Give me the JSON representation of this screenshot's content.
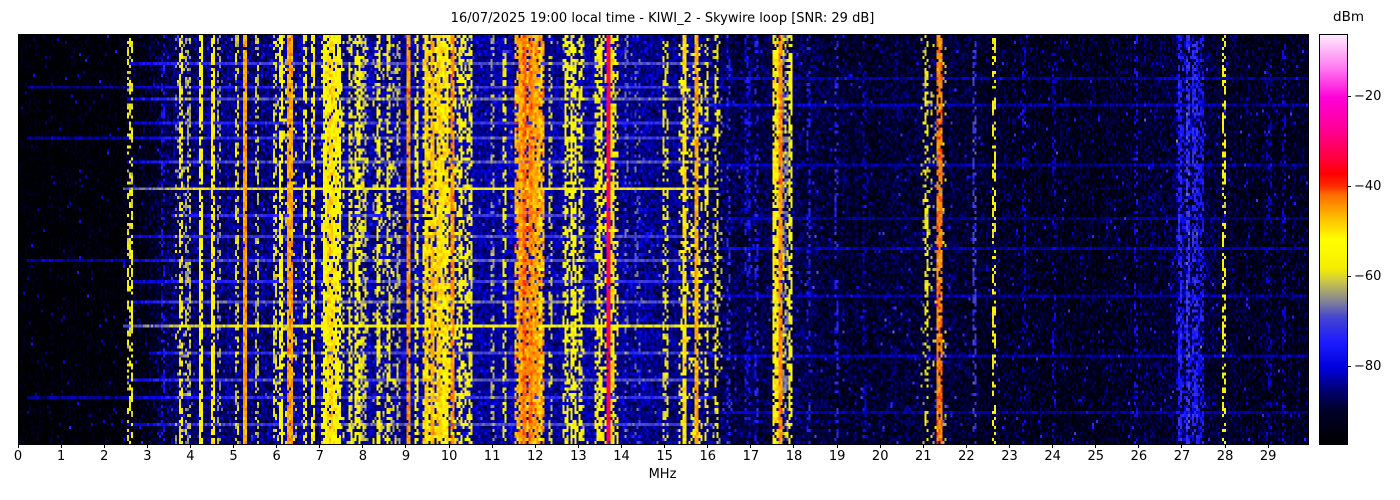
{
  "chart_data": {
    "type": "heatmap",
    "title": "16/07/2025 19:00 local time - KIWI_2 - Skywire loop [SNR: 29 dB]",
    "xlabel": "MHz",
    "colorbar_label": "dBm",
    "x_range": [
      0,
      29.9
    ],
    "x_ticks": [
      0,
      1,
      2,
      3,
      4,
      5,
      6,
      7,
      8,
      9,
      10,
      11,
      12,
      13,
      14,
      15,
      16,
      17,
      18,
      19,
      20,
      21,
      22,
      23,
      24,
      25,
      26,
      27,
      28,
      29
    ],
    "colorbar_ticks": [
      -20,
      -40,
      -60,
      -80
    ],
    "value_range_dbm": [
      -97,
      -6
    ],
    "legend_position": "right-colorbar",
    "grid": false,
    "colormap_stops": [
      [
        0.0,
        "#000000"
      ],
      [
        0.08,
        "#000028"
      ],
      [
        0.13,
        "#000070"
      ],
      [
        0.187,
        "#0000dd"
      ],
      [
        0.25,
        "#1c1cff"
      ],
      [
        0.31,
        "#4646cf"
      ],
      [
        0.355,
        "#8b8b8b"
      ],
      [
        0.4,
        "#cfc944"
      ],
      [
        0.43,
        "#f5ee00"
      ],
      [
        0.5,
        "#ffff00"
      ],
      [
        0.56,
        "#ffb400"
      ],
      [
        0.61,
        "#ff6a00"
      ],
      [
        0.63,
        "#ff2d00"
      ],
      [
        0.66,
        "#ff0000"
      ],
      [
        0.7,
        "#ff0040"
      ],
      [
        0.76,
        "#ff008c"
      ],
      [
        0.846,
        "#ff00d9"
      ],
      [
        0.92,
        "#ff7bf0"
      ],
      [
        1.0,
        "#ffebff"
      ]
    ],
    "noise_floor_dbm": [
      [
        0,
        -96.5
      ],
      [
        2.3,
        -96
      ],
      [
        2.6,
        -94.5
      ],
      [
        3.0,
        -92
      ],
      [
        3.4,
        -89
      ],
      [
        3.7,
        -86
      ],
      [
        4.5,
        -85.5
      ],
      [
        5.5,
        -85
      ],
      [
        6.5,
        -84
      ],
      [
        7.5,
        -83
      ],
      [
        8.5,
        -83.5
      ],
      [
        9.5,
        -82.5
      ],
      [
        10.5,
        -83
      ],
      [
        11.5,
        -82.5
      ],
      [
        12.5,
        -83.5
      ],
      [
        13.5,
        -83
      ],
      [
        14.5,
        -84
      ],
      [
        15.5,
        -84
      ],
      [
        15.9,
        -85.5
      ],
      [
        16.3,
        -87.5
      ],
      [
        17.2,
        -88
      ],
      [
        17.8,
        -87
      ],
      [
        18.6,
        -89.5
      ],
      [
        19.5,
        -90
      ],
      [
        20.5,
        -89.5
      ],
      [
        21.5,
        -89.5
      ],
      [
        22.5,
        -90.5
      ],
      [
        23.5,
        -91
      ],
      [
        25,
        -91.5
      ],
      [
        26.5,
        -90
      ],
      [
        27.2,
        -88
      ],
      [
        27.6,
        -89
      ],
      [
        28.3,
        -91
      ],
      [
        29.9,
        -91.5
      ]
    ],
    "bands": [
      {
        "f1": 3.6,
        "f2": 4.0,
        "level": -64,
        "density": 0.18
      },
      {
        "f1": 6.0,
        "f2": 6.45,
        "level": -60,
        "density": 0.15
      },
      {
        "f1": 7.0,
        "f2": 7.55,
        "level": -56,
        "density": 0.3
      },
      {
        "f1": 7.6,
        "f2": 8.1,
        "level": -60,
        "density": 0.18
      },
      {
        "f1": 8.2,
        "f2": 8.8,
        "level": -60,
        "density": 0.2
      },
      {
        "f1": 9.35,
        "f2": 10.0,
        "level": -51,
        "density": 0.5
      },
      {
        "f1": 10.0,
        "f2": 10.5,
        "level": -55,
        "density": 0.35
      },
      {
        "f1": 11.5,
        "f2": 12.2,
        "level": -46,
        "density": 0.6
      },
      {
        "f1": 12.6,
        "f2": 13.1,
        "level": -57,
        "density": 0.25
      },
      {
        "f1": 13.4,
        "f2": 13.9,
        "level": -53,
        "density": 0.3
      },
      {
        "f1": 15.3,
        "f2": 15.85,
        "level": -55,
        "density": 0.25
      },
      {
        "f1": 16.1,
        "f2": 16.3,
        "level": -62,
        "density": 0.15
      },
      {
        "f1": 17.5,
        "f2": 17.95,
        "level": -58,
        "density": 0.2
      },
      {
        "f1": 20.9,
        "f2": 21.5,
        "level": -62,
        "density": 0.12
      },
      {
        "f1": 26.85,
        "f2": 27.5,
        "level": -78,
        "density": 0.35
      }
    ],
    "carriers": [
      {
        "f": 2.57,
        "level": -58,
        "duty": 0.5
      },
      {
        "f": 3.33,
        "level": -76,
        "duty": 0.3
      },
      {
        "f": 3.75,
        "level": -57,
        "duty": 0.55
      },
      {
        "f": 3.92,
        "level": -62,
        "duty": 0.35
      },
      {
        "f": 4.22,
        "level": -54,
        "duty": 0.8
      },
      {
        "f": 4.48,
        "level": -51,
        "duty": 0.8
      },
      {
        "f": 4.65,
        "level": -64,
        "duty": 0.35
      },
      {
        "f": 5.07,
        "level": -60,
        "duty": 0.45
      },
      {
        "f": 5.23,
        "level": -45,
        "duty": 0.95,
        "w": 0.07
      },
      {
        "f": 5.51,
        "level": -61,
        "duty": 0.45
      },
      {
        "f": 5.92,
        "level": -59,
        "duty": 0.5
      },
      {
        "f": 6.08,
        "level": -54,
        "duty": 0.65
      },
      {
        "f": 6.28,
        "level": -45,
        "duty": 0.92,
        "w": 0.07
      },
      {
        "f": 6.62,
        "level": -57,
        "duty": 0.55
      },
      {
        "f": 6.8,
        "level": -51,
        "duty": 0.7
      },
      {
        "f": 7.08,
        "level": -54,
        "duty": 0.75
      },
      {
        "f": 7.21,
        "level": -49,
        "duty": 0.85
      },
      {
        "f": 7.32,
        "level": -51,
        "duty": 0.8
      },
      {
        "f": 7.43,
        "level": -54,
        "duty": 0.7
      },
      {
        "f": 7.7,
        "level": -57,
        "duty": 0.55
      },
      {
        "f": 7.86,
        "level": -54,
        "duty": 0.65
      },
      {
        "f": 8.0,
        "level": -60,
        "duty": 0.45
      },
      {
        "f": 8.34,
        "level": -53,
        "duty": 0.6
      },
      {
        "f": 8.56,
        "level": -57,
        "duty": 0.5
      },
      {
        "f": 8.8,
        "level": -62,
        "duty": 0.4
      },
      {
        "f": 9.05,
        "level": -44,
        "duty": 0.9,
        "w": 0.07
      },
      {
        "f": 9.22,
        "level": -54,
        "duty": 0.55
      },
      {
        "f": 9.45,
        "level": -49,
        "duty": 0.8
      },
      {
        "f": 9.6,
        "level": -47,
        "duty": 0.85
      },
      {
        "f": 9.76,
        "level": -49,
        "duty": 0.8
      },
      {
        "f": 9.9,
        "level": -51,
        "duty": 0.7
      },
      {
        "f": 10.05,
        "level": -44,
        "duty": 0.85,
        "w": 0.07
      },
      {
        "f": 10.26,
        "level": -53,
        "duty": 0.6
      },
      {
        "f": 10.46,
        "level": -59,
        "duty": 0.4
      },
      {
        "f": 11.0,
        "level": -62,
        "duty": 0.35
      },
      {
        "f": 11.26,
        "level": -57,
        "duty": 0.45
      },
      {
        "f": 11.62,
        "level": -46,
        "duty": 0.85
      },
      {
        "f": 11.73,
        "level": -42,
        "duty": 0.92,
        "w": 0.07
      },
      {
        "f": 11.86,
        "level": -43,
        "duty": 0.92,
        "w": 0.07
      },
      {
        "f": 11.98,
        "level": -46,
        "duty": 0.85
      },
      {
        "f": 12.1,
        "level": -50,
        "duty": 0.7
      },
      {
        "f": 12.33,
        "level": -60,
        "duty": 0.4
      },
      {
        "f": 12.7,
        "level": -56,
        "duty": 0.5
      },
      {
        "f": 12.86,
        "level": -53,
        "duty": 0.6
      },
      {
        "f": 13.02,
        "level": -56,
        "duty": 0.5
      },
      {
        "f": 13.38,
        "level": -57,
        "duty": 0.5
      },
      {
        "f": 13.5,
        "level": -52,
        "duty": 0.6
      },
      {
        "f": 13.66,
        "level": -32,
        "duty": 0.95,
        "w": 0.06
      },
      {
        "f": 13.78,
        "level": -50,
        "duty": 0.7
      },
      {
        "f": 14.1,
        "level": -66,
        "duty": 0.25
      },
      {
        "f": 14.35,
        "level": -68,
        "duty": 0.2
      },
      {
        "f": 15.0,
        "level": -58,
        "duty": 0.45
      },
      {
        "f": 15.45,
        "level": -50,
        "duty": 0.85
      },
      {
        "f": 15.72,
        "level": -46,
        "duty": 0.9,
        "w": 0.06
      },
      {
        "f": 15.95,
        "level": -57,
        "duty": 0.45
      },
      {
        "f": 16.17,
        "level": -57,
        "duty": 0.45
      },
      {
        "f": 16.45,
        "level": -72,
        "duty": 0.3
      },
      {
        "f": 16.9,
        "level": -76,
        "duty": 0.3
      },
      {
        "f": 17.1,
        "level": -74,
        "duty": 0.3
      },
      {
        "f": 17.55,
        "level": -51,
        "duty": 0.75
      },
      {
        "f": 17.66,
        "level": -44,
        "duty": 0.92,
        "w": 0.06
      },
      {
        "f": 17.78,
        "level": -66,
        "duty": 0.5
      },
      {
        "f": 17.88,
        "level": -54,
        "duty": 0.55
      },
      {
        "f": 18.3,
        "level": -74,
        "duty": 0.3
      },
      {
        "f": 18.95,
        "level": -73,
        "duty": 0.3
      },
      {
        "f": 19.6,
        "level": -80,
        "duty": 0.25
      },
      {
        "f": 21.05,
        "level": -57,
        "duty": 0.4
      },
      {
        "f": 21.35,
        "level": -43,
        "duty": 0.85,
        "w": 0.06
      },
      {
        "f": 22.15,
        "level": -70,
        "duty": 0.4
      },
      {
        "f": 22.62,
        "level": -57,
        "duty": 0.5
      },
      {
        "f": 23.3,
        "level": -80,
        "duty": 0.3
      },
      {
        "f": 24.0,
        "level": -80,
        "duty": 0.3
      },
      {
        "f": 25.9,
        "level": -78,
        "duty": 0.3
      },
      {
        "f": 26.95,
        "level": -74,
        "duty": 0.6
      },
      {
        "f": 27.1,
        "level": -71,
        "duty": 0.6
      },
      {
        "f": 27.28,
        "level": -73,
        "duty": 0.5
      },
      {
        "f": 27.42,
        "level": -76,
        "duty": 0.4
      },
      {
        "f": 27.95,
        "level": -56,
        "duty": 0.5
      },
      {
        "f": 29.0,
        "level": -82,
        "duty": 0.3
      },
      {
        "f": 29.35,
        "level": -80,
        "duty": 0.3
      }
    ],
    "bursts": [
      {
        "t": 0.065,
        "f1": 2.5,
        "f2": 16.1,
        "boost": 14
      },
      {
        "t": 0.1,
        "f1": 16.0,
        "f2": 29.9,
        "boost": 7
      },
      {
        "t": 0.125,
        "f1": 0.2,
        "f2": 16.1,
        "boost": 12
      },
      {
        "t": 0.155,
        "f1": 2.5,
        "f2": 16.1,
        "boost": 16
      },
      {
        "t": 0.17,
        "f1": 16.0,
        "f2": 29.9,
        "boost": 8
      },
      {
        "t": 0.21,
        "f1": 2.5,
        "f2": 16.1,
        "boost": 12
      },
      {
        "t": 0.25,
        "f1": 0.2,
        "f2": 16.1,
        "boost": 13
      },
      {
        "t": 0.31,
        "f1": 2.5,
        "f2": 16.1,
        "boost": 15
      },
      {
        "t": 0.315,
        "f1": 16.0,
        "f2": 29.9,
        "boost": 7
      },
      {
        "t": 0.375,
        "f1": 2.4,
        "f2": 16.2,
        "boost": 26
      },
      {
        "t": 0.44,
        "f1": 3.5,
        "f2": 13.0,
        "boost": 12
      },
      {
        "t": 0.445,
        "f1": 16.0,
        "f2": 29.9,
        "boost": 6
      },
      {
        "t": 0.49,
        "f1": 2.5,
        "f2": 16.1,
        "boost": 13
      },
      {
        "t": 0.525,
        "f1": 16.0,
        "f2": 29.9,
        "boost": 8
      },
      {
        "t": 0.555,
        "f1": 0.2,
        "f2": 16.1,
        "boost": 14
      },
      {
        "t": 0.6,
        "f1": 2.5,
        "f2": 16.1,
        "boost": 12
      },
      {
        "t": 0.64,
        "f1": 16.0,
        "f2": 29.9,
        "boost": 7
      },
      {
        "t": 0.655,
        "f1": 2.5,
        "f2": 16.1,
        "boost": 16
      },
      {
        "t": 0.715,
        "f1": 2.4,
        "f2": 16.2,
        "boost": 26
      },
      {
        "t": 0.78,
        "f1": 3.0,
        "f2": 16.1,
        "boost": 13
      },
      {
        "t": 0.79,
        "f1": 16.0,
        "f2": 29.9,
        "boost": 8
      },
      {
        "t": 0.845,
        "f1": 2.5,
        "f2": 16.1,
        "boost": 15
      },
      {
        "t": 0.89,
        "f1": 0.2,
        "f2": 16.1,
        "boost": 12
      },
      {
        "t": 0.93,
        "f1": 16.0,
        "f2": 29.9,
        "boost": 7
      },
      {
        "t": 0.955,
        "f1": 2.5,
        "f2": 16.1,
        "boost": 14
      }
    ],
    "cells": [
      645,
      137
    ],
    "noise_sd_db": 3.2,
    "rng_seed": 1337
  }
}
